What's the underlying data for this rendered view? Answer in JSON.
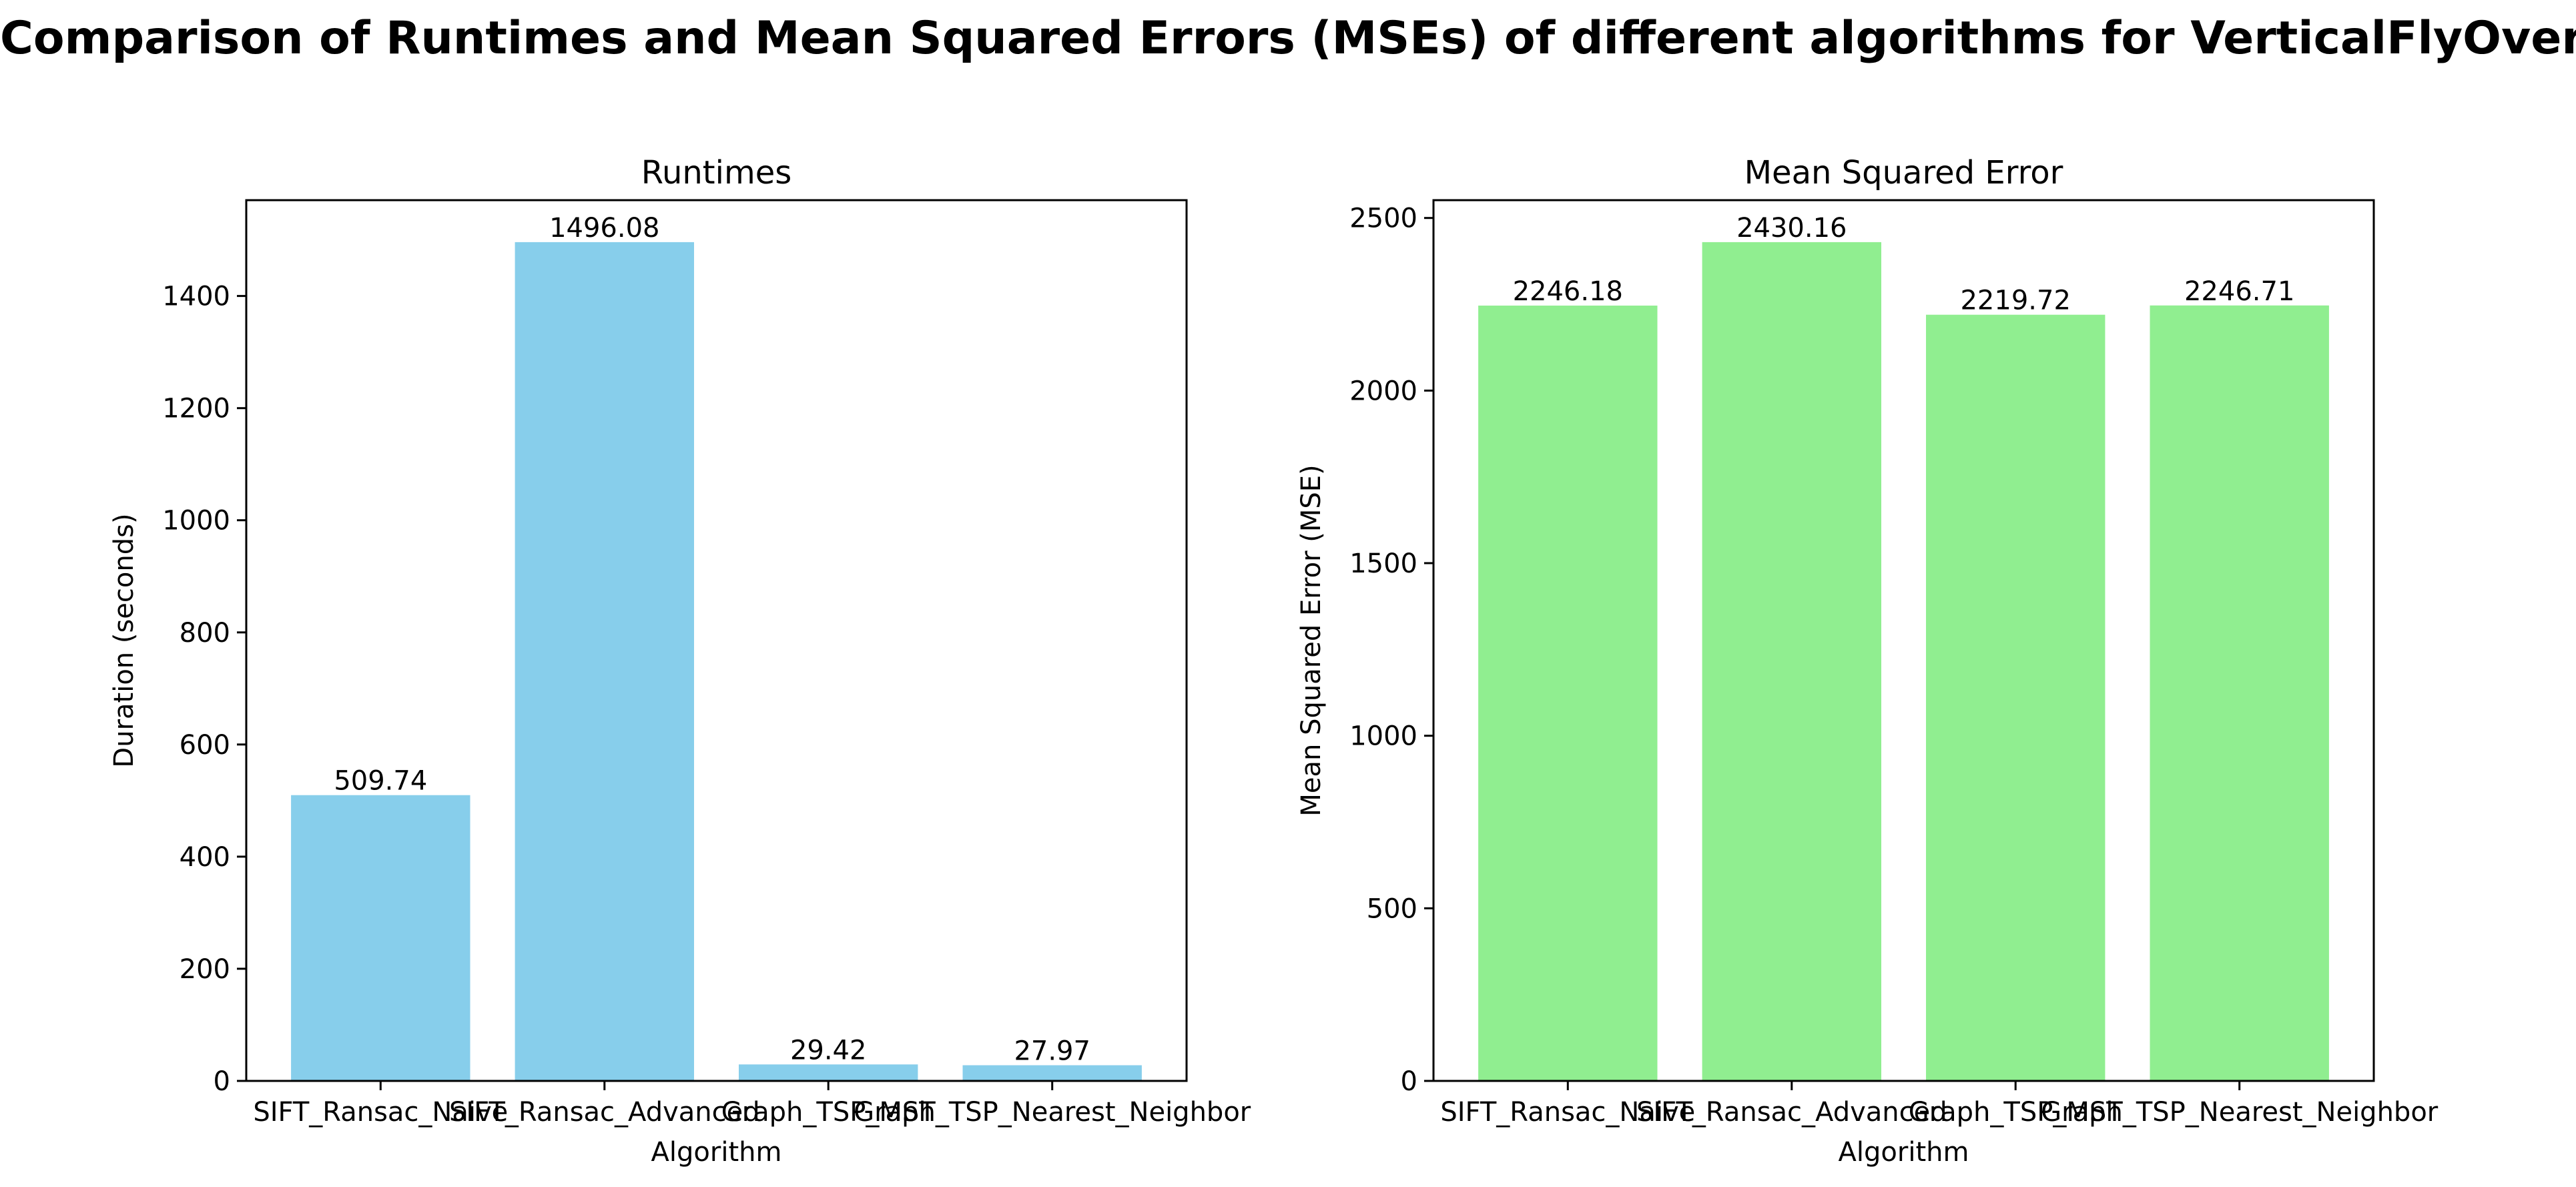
{
  "figure": {
    "title": "Comparison of Runtimes and Mean Squared Errors (MSEs) of different algorithms for VerticalFlyOver"
  },
  "chart_data": [
    {
      "type": "bar",
      "title": "Runtimes",
      "xlabel": "Algorithm",
      "ylabel": "Duration (seconds)",
      "categories": [
        "SIFT_Ransac_Naive",
        "SIFT_Ransac_Advanced",
        "Graph_TSP_MST",
        "Graph_TSP_Nearest_Neighbor"
      ],
      "values": [
        509.74,
        1496.08,
        29.42,
        27.97
      ],
      "value_labels": [
        "509.74",
        "1496.08",
        "29.42",
        "27.97"
      ],
      "ylim": [
        0,
        1570.9
      ],
      "yticks": [
        0,
        200,
        400,
        600,
        800,
        1000,
        1200,
        1400
      ],
      "bar_color": "#87ceeb",
      "grid": false,
      "legend": "none"
    },
    {
      "type": "bar",
      "title": "Mean Squared Error",
      "xlabel": "Algorithm",
      "ylabel": "Mean Squared Error (MSE)",
      "categories": [
        "SIFT_Ransac_Naive",
        "SIFT_Ransac_Advanced",
        "Graph_TSP_MST",
        "Graph_TSP_Nearest_Neighbor"
      ],
      "values": [
        2246.18,
        2430.16,
        2219.72,
        2246.71
      ],
      "value_labels": [
        "2246.18",
        "2430.16",
        "2219.72",
        "2246.71"
      ],
      "ylim": [
        0,
        2551.67
      ],
      "yticks": [
        0,
        500,
        1000,
        1500,
        2000,
        2500
      ],
      "bar_color": "#90ee90",
      "grid": false,
      "legend": "none"
    }
  ]
}
